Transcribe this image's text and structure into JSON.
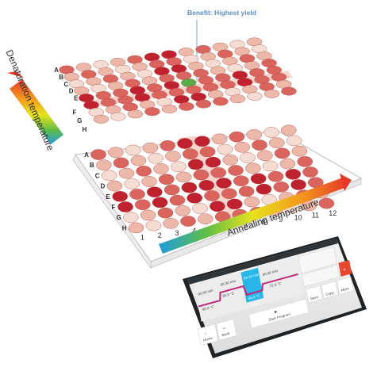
{
  "benefit_label": "Benefit: Highest yield",
  "axes": {
    "vertical": "Denaturation temperature",
    "horizontal": "Annealing temperature"
  },
  "plate": {
    "rows": [
      "A",
      "B",
      "C",
      "D",
      "E",
      "F",
      "G",
      "H"
    ],
    "columns": [
      "1",
      "2",
      "3",
      "4",
      "5",
      "6",
      "7",
      "8",
      "9",
      "10",
      "11",
      "12"
    ],
    "highlight_row": "F",
    "highlight_column": "6"
  },
  "screen": {
    "step_times": [
      "00:30 min",
      "00:30 min",
      "00:10 min",
      "00:30 min"
    ],
    "temperatures": [
      "95.0 °C",
      "95.0 °C",
      "60.0 °C",
      "72.0 °C",
      "4 °C"
    ],
    "cycles": "30x",
    "buttons": {
      "start_program": "Start Program",
      "home": "Home",
      "back": "Back",
      "save": "Save",
      "copy": "Copy",
      "more": "More"
    }
  },
  "colors": {
    "deep_red": "#c0212f",
    "mid_red": "#d9655e",
    "light_pink": "#ecb8a9",
    "pale_pink": "#f5dcd2",
    "green": "#58ac48",
    "hl_salmon": "#f3b3a6",
    "accent_red": "#e8472f",
    "cyan": "#29b6e8",
    "magenta": "#c42476"
  }
}
